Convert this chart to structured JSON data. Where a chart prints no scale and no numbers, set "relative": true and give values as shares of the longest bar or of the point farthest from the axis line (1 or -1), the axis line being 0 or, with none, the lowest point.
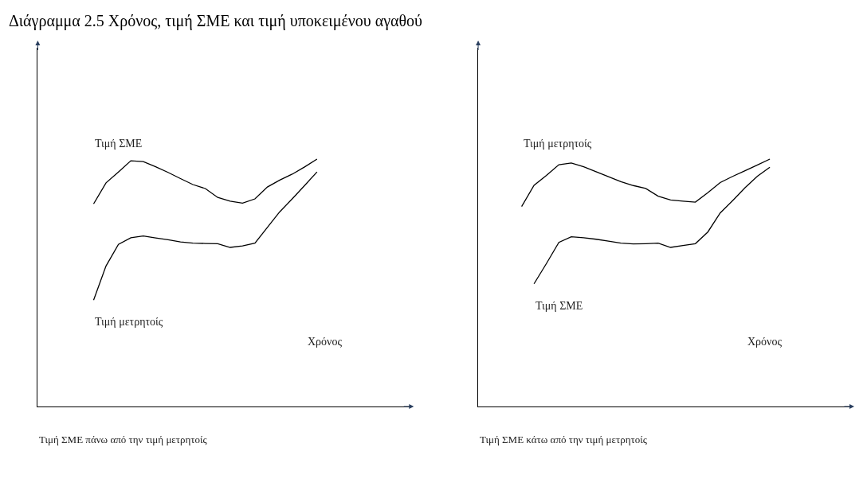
{
  "chart_data": [
    {
      "type": "line",
      "title": "Διάγραμμα 2.5 Χρόνος, τιμή ΣΜΕ και τιμή υποκειμένου αγαθού",
      "xlabel": "Χρόνος",
      "relative": true,
      "categories": [
        null,
        null,
        null,
        null,
        null,
        null,
        null,
        null,
        null,
        null,
        null,
        null,
        null,
        null,
        null,
        null,
        null,
        null,
        null,
        null,
        null,
        null,
        null,
        null,
        null,
        null,
        null,
        null,
        null,
        null
      ],
      "annotations": [
        "Τιμή ΣΜΕ πάνω από την τιμή μετρητοίς"
      ],
      "series": [
        {
          "name": "Τιμή ΣΜΕ",
          "color": "#000000",
          "values": [
            null,
            null,
            null,
            null,
            0.819,
            0.904,
            0.948,
            0.993,
            0.99,
            0.969,
            0.946,
            0.921,
            0.897,
            0.881,
            0.845,
            0.83,
            0.822,
            0.839,
            0.887,
            0.915,
            0.939,
            0.968,
            1.0,
            null,
            null,
            null,
            null,
            null,
            null,
            null
          ]
        },
        {
          "name": "Τιμή μετρητοίς",
          "color": "#000000",
          "values": [
            null,
            null,
            null,
            null,
            0.43,
            0.568,
            0.655,
            0.682,
            0.689,
            0.681,
            0.674,
            0.665,
            0.66,
            0.659,
            0.658,
            0.643,
            0.649,
            0.66,
            0.724,
            0.787,
            0.839,
            0.893,
            0.948,
            null,
            null,
            null,
            null,
            null,
            null,
            null
          ]
        }
      ]
    },
    {
      "type": "line",
      "xlabel": "Χρόνος",
      "relative": true,
      "categories": [
        null,
        null,
        null,
        null,
        null,
        null,
        null,
        null,
        null,
        null,
        null,
        null,
        null,
        null,
        null,
        null,
        null,
        null,
        null,
        null,
        null,
        null,
        null,
        null,
        null,
        null,
        null,
        null,
        null,
        null
      ],
      "annotations": [
        "Τιμή ΣΜΕ κάτω από την τιμή μετρητοίς"
      ],
      "series": [
        {
          "name": "Τιμή μετρητοίς",
          "color": "#000000",
          "values": [
            null,
            null,
            null,
            0.808,
            0.894,
            0.934,
            0.977,
            0.984,
            0.969,
            0.949,
            0.929,
            0.909,
            0.893,
            0.881,
            0.85,
            0.835,
            0.83,
            0.826,
            0.864,
            0.905,
            0.93,
            0.953,
            0.976,
            1.0,
            null,
            null,
            null,
            null,
            null,
            null
          ]
        },
        {
          "name": "Τιμή ΣΜΕ",
          "color": "#000000",
          "values": [
            null,
            null,
            null,
            null,
            0.496,
            0.578,
            0.663,
            0.686,
            0.682,
            0.676,
            0.668,
            0.66,
            0.657,
            0.658,
            0.66,
            0.643,
            0.651,
            0.658,
            0.705,
            0.782,
            0.832,
            0.884,
            0.931,
            0.967,
            null,
            null,
            null,
            null,
            null,
            null
          ]
        }
      ]
    }
  ]
}
